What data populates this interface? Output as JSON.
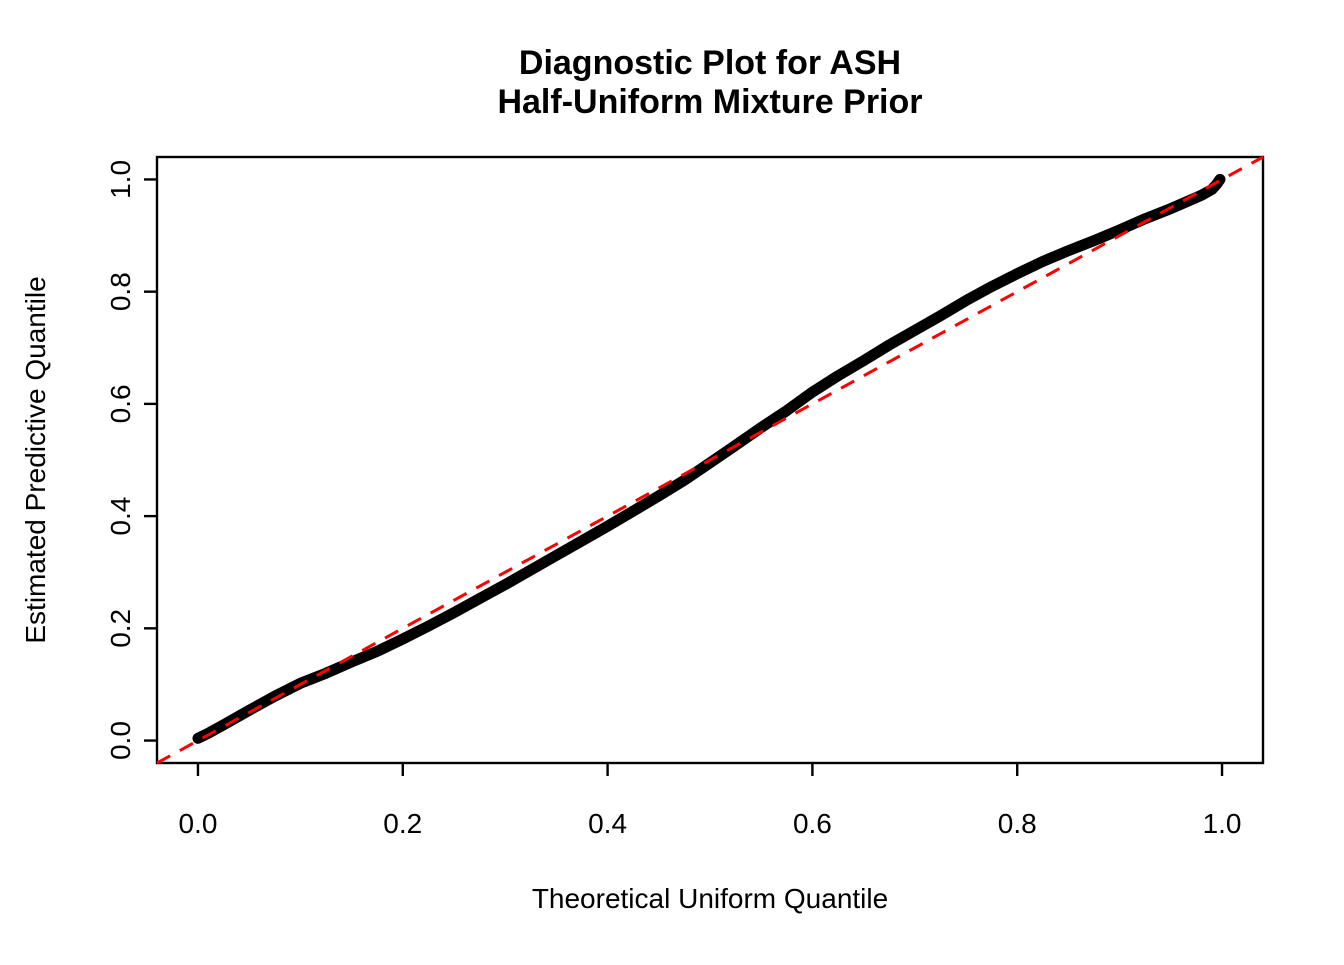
{
  "figure": {
    "background_color": "#ffffff",
    "plot_background_color": "#ffffff",
    "box_color": "#000000"
  },
  "chart_data": {
    "type": "scatter",
    "title": "Diagnostic Plot for ASH\nHalf-Uniform Mixture Prior",
    "title_lines": [
      "Diagnostic Plot for ASH",
      "Half-Uniform Mixture Prior"
    ],
    "xlabel": "Theoretical Uniform Quantile",
    "ylabel": "Estimated Predictive Quantile",
    "xlim": [
      -0.04,
      1.04
    ],
    "ylim": [
      -0.04,
      1.04
    ],
    "x_ticks": [
      0.0,
      0.2,
      0.4,
      0.6,
      0.8,
      1.0
    ],
    "y_ticks": [
      0.0,
      0.2,
      0.4,
      0.6,
      0.8,
      1.0
    ],
    "x_tick_labels": [
      "0.0",
      "0.2",
      "0.4",
      "0.6",
      "0.8",
      "1.0"
    ],
    "y_tick_labels": [
      "0.0",
      "0.2",
      "0.4",
      "0.6",
      "0.8",
      "1.0"
    ],
    "grid": false,
    "legend": null,
    "series": [
      {
        "name": "estimated-vs-theoretical-quantiles",
        "style": "thick-point-band",
        "color": "#000000",
        "points": [
          [
            0.0,
            0.004
          ],
          [
            0.01,
            0.013
          ],
          [
            0.025,
            0.028
          ],
          [
            0.05,
            0.054
          ],
          [
            0.075,
            0.079
          ],
          [
            0.1,
            0.102
          ],
          [
            0.125,
            0.12
          ],
          [
            0.15,
            0.14
          ],
          [
            0.175,
            0.159
          ],
          [
            0.2,
            0.181
          ],
          [
            0.225,
            0.204
          ],
          [
            0.25,
            0.228
          ],
          [
            0.275,
            0.253
          ],
          [
            0.3,
            0.278
          ],
          [
            0.325,
            0.304
          ],
          [
            0.35,
            0.33
          ],
          [
            0.375,
            0.356
          ],
          [
            0.4,
            0.382
          ],
          [
            0.425,
            0.409
          ],
          [
            0.45,
            0.436
          ],
          [
            0.475,
            0.464
          ],
          [
            0.5,
            0.495
          ],
          [
            0.52,
            0.52
          ],
          [
            0.55,
            0.558
          ],
          [
            0.575,
            0.588
          ],
          [
            0.6,
            0.621
          ],
          [
            0.625,
            0.65
          ],
          [
            0.65,
            0.677
          ],
          [
            0.675,
            0.705
          ],
          [
            0.7,
            0.731
          ],
          [
            0.725,
            0.757
          ],
          [
            0.75,
            0.784
          ],
          [
            0.775,
            0.809
          ],
          [
            0.8,
            0.832
          ],
          [
            0.825,
            0.854
          ],
          [
            0.85,
            0.873
          ],
          [
            0.875,
            0.891
          ],
          [
            0.9,
            0.91
          ],
          [
            0.925,
            0.93
          ],
          [
            0.95,
            0.948
          ],
          [
            0.965,
            0.96
          ],
          [
            0.98,
            0.972
          ],
          [
            0.99,
            0.982
          ],
          [
            0.995,
            0.992
          ],
          [
            0.998,
            1.0
          ]
        ]
      }
    ],
    "reference_line": {
      "name": "identity-line",
      "slope": 1,
      "intercept": 0,
      "style": "dashed",
      "color": "#FF0000"
    }
  }
}
